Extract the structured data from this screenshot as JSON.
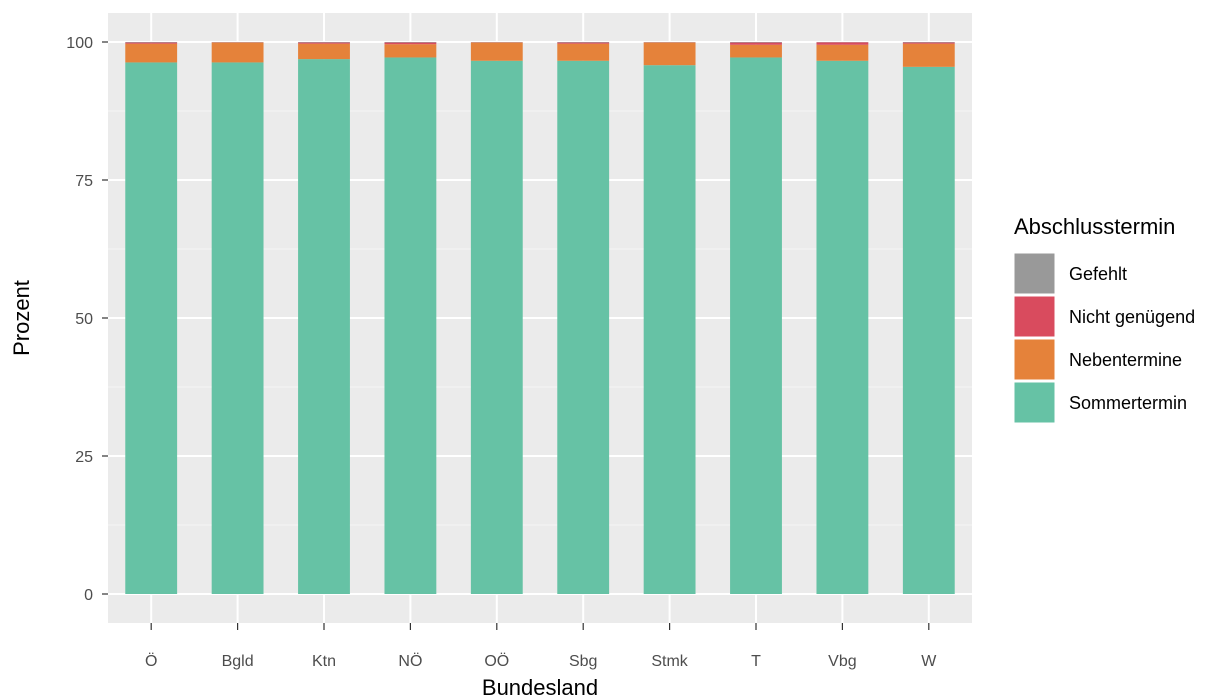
{
  "chart_data": {
    "type": "bar",
    "stacked": true,
    "xlabel": "Bundesland",
    "ylabel": "Prozent",
    "ylim": [
      0,
      100
    ],
    "yticks": [
      0,
      25,
      50,
      75,
      100
    ],
    "grid": true,
    "legend_placement": "right",
    "categories": [
      "Ö",
      "Bgld",
      "Ktn",
      "NÖ",
      "OÖ",
      "Sbg",
      "Stmk",
      "T",
      "Vbg",
      "W"
    ],
    "legend": {
      "title": "Abschlusstermin",
      "order": [
        "Gefehlt",
        "Nicht genügend",
        "Nebentermine",
        "Sommertermin"
      ]
    },
    "series": [
      {
        "name": "Sommertermin",
        "color": "#66C2A5",
        "values": [
          96.3,
          96.3,
          96.9,
          97.2,
          96.6,
          96.6,
          95.8,
          97.2,
          96.6,
          95.5
        ]
      },
      {
        "name": "Nebentermine",
        "color": "#E5823A",
        "values": [
          3.4,
          3.6,
          2.8,
          2.4,
          3.3,
          3.1,
          4.1,
          2.3,
          2.9,
          4.2
        ]
      },
      {
        "name": "Nicht genügend",
        "color": "#D94B5E",
        "values": [
          0.2,
          0.05,
          0.2,
          0.3,
          0.05,
          0.2,
          0.05,
          0.4,
          0.45,
          0.2
        ]
      },
      {
        "name": "Gefehlt",
        "color": "#999999",
        "values": [
          0.1,
          0.05,
          0.1,
          0.1,
          0.05,
          0.1,
          0.05,
          0.1,
          0.05,
          0.1
        ]
      }
    ]
  }
}
